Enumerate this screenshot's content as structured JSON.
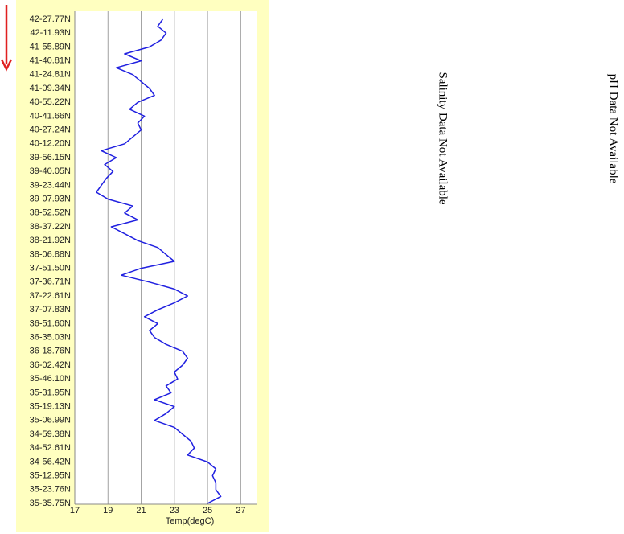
{
  "chart_data": {
    "type": "line",
    "orientation": "vertical",
    "x_label": "Temp(degC)",
    "annotations": [
      "Salinity Data Not Available",
      "pH Data Not Available"
    ],
    "categories": [
      "42-27.77N",
      null,
      "42-11.93N",
      null,
      "41-55.89N",
      null,
      "41-40.81N",
      null,
      "41-24.81N",
      null,
      "41-09.34N",
      null,
      "40-55.22N",
      null,
      "40-41.66N",
      null,
      "40-27.24N",
      null,
      "40-12.20N",
      null,
      "39-56.15N",
      null,
      "39-40.05N",
      null,
      "39-23.44N",
      null,
      "39-07.93N",
      null,
      "38-52.52N",
      null,
      "38-37.22N",
      null,
      "38-21.92N",
      null,
      "38-06.88N",
      null,
      "37-51.50N",
      null,
      "37-36.71N",
      null,
      "37-22.61N",
      null,
      "37-07.83N",
      null,
      "36-51.60N",
      null,
      "36-35.03N",
      null,
      "36-18.76N",
      null,
      "36-02.42N",
      null,
      "35-46.10N",
      null,
      "35-31.95N",
      null,
      "35-19.13N",
      null,
      "35-06.99N",
      null,
      "34-59.38N",
      null,
      "34-52.61N",
      null,
      "34-56.42N",
      null,
      "35-12.95N",
      null,
      "35-23.76N",
      null,
      "35-35.75N"
    ],
    "series": [
      {
        "color": "#2020e0",
        "values": [
          22.3,
          22.0,
          22.5,
          22.2,
          21.5,
          20.0,
          21.0,
          19.5,
          20.5,
          21.0,
          21.5,
          21.8,
          20.8,
          20.3,
          21.2,
          20.8,
          21.0,
          20.5,
          20.0,
          18.6,
          19.5,
          18.8,
          19.3,
          18.9,
          18.6,
          18.3,
          19.0,
          20.5,
          20.0,
          20.8,
          19.2,
          20.0,
          20.8,
          22.0,
          22.5,
          23.0,
          21.0,
          19.8,
          21.5,
          23.0,
          23.8,
          23.0,
          22.0,
          21.2,
          22.0,
          21.5,
          21.8,
          22.5,
          23.5,
          23.8,
          23.5,
          23.0,
          23.2,
          22.5,
          22.8,
          21.8,
          23.0,
          22.5,
          21.8,
          23.0,
          23.5,
          24.0,
          24.2,
          23.8,
          25.0,
          25.5,
          25.3,
          25.5,
          25.5,
          25.8,
          25.0
        ]
      }
    ],
    "xlim": [
      17,
      28
    ],
    "xticks": [
      17,
      19,
      21,
      23,
      25,
      27
    ],
    "grid": true
  }
}
